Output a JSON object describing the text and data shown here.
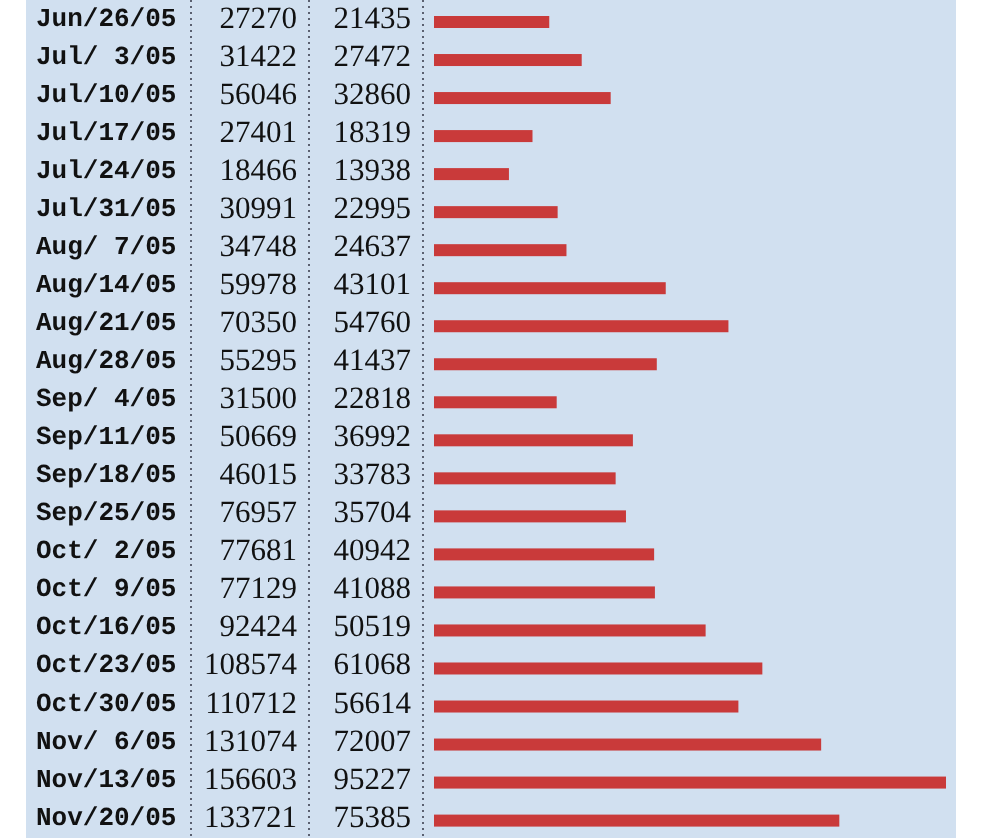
{
  "chart_data": {
    "type": "bar",
    "orientation": "horizontal",
    "tick_labels": "y",
    "data_labels": true,
    "categories": [
      "Jun/26/05",
      "Jul/ 3/05",
      "Jul/10/05",
      "Jul/17/05",
      "Jul/24/05",
      "Jul/31/05",
      "Aug/ 7/05",
      "Aug/14/05",
      "Aug/21/05",
      "Aug/28/05",
      "Sep/ 4/05",
      "Sep/11/05",
      "Sep/18/05",
      "Sep/25/05",
      "Oct/ 2/05",
      "Oct/ 9/05",
      "Oct/16/05",
      "Oct/23/05",
      "Oct/30/05",
      "Nov/ 6/05",
      "Nov/13/05",
      "Nov/20/05"
    ],
    "series": [
      {
        "color": "#c93a3a",
        "values": [
          21435,
          27472,
          32860,
          18319,
          13938,
          22995,
          24637,
          43101,
          54760,
          41437,
          22818,
          36992,
          33783,
          35704,
          40942,
          41088,
          50519,
          61068,
          56614,
          72007,
          95227,
          75385
        ]
      }
    ],
    "annotations": [
      "27270",
      "31422",
      "56046",
      "27401",
      "18466",
      "30991",
      "34748",
      "59978",
      "70350",
      "55295",
      "31500",
      "50669",
      "46015",
      "76957",
      "77681",
      "77129",
      "92424",
      "108574",
      "110712",
      "131074",
      "156603",
      "133721"
    ]
  }
}
